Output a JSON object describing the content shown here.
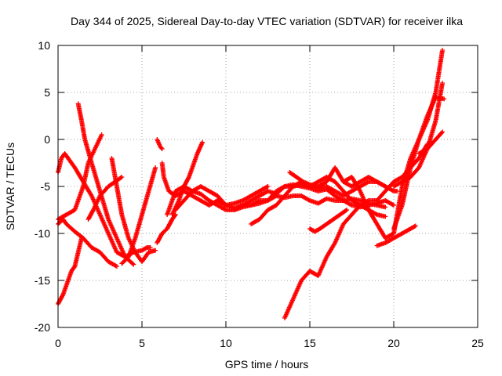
{
  "chart_data": {
    "type": "scatter",
    "title": "Day 344 of 2025, Sidereal Day-to-day VTEC variation (SDTVAR) for receiver ilka",
    "xlabel": "GPS time / hours",
    "ylabel": "SDTVAR / TECUs",
    "xlim": [
      0,
      25
    ],
    "ylim": [
      -20,
      10
    ],
    "xticks": [
      "0",
      "5",
      "10",
      "15",
      "20",
      "25"
    ],
    "yticks": [
      "10",
      "5",
      "0",
      "-5",
      "-10",
      "-15",
      "-20"
    ],
    "xtick_values": [
      0,
      5,
      10,
      15,
      20,
      25
    ],
    "ytick_values": [
      10,
      5,
      0,
      -5,
      -10,
      -15,
      -20
    ],
    "grid": true,
    "marker": "+",
    "color": "#ff0000",
    "series": [
      {
        "x": [
          0.0,
          0.3,
          0.6,
          0.8,
          1.0,
          1.2,
          1.4
        ],
        "y": [
          -17.5,
          -16.5,
          -15.0,
          -14.0,
          -13.5,
          -12.0,
          -10.5
        ]
      },
      {
        "x": [
          0.0,
          0.2,
          0.4,
          0.6,
          1.0,
          1.5,
          2.0,
          2.5,
          3.0,
          3.5,
          4.0,
          4.5,
          5.0,
          5.3,
          5.5
        ],
        "y": [
          -3.5,
          -2.0,
          -1.5,
          -2.0,
          -3.0,
          -4.5,
          -6.0,
          -8.0,
          -10.0,
          -12.0,
          -12.5,
          -12.0,
          -11.8,
          -11.5,
          -11.5
        ]
      },
      {
        "x": [
          0.0,
          0.3,
          0.5,
          1.0,
          1.5,
          2.0,
          2.5,
          3.0,
          3.5
        ],
        "y": [
          -9.0,
          -8.5,
          -9.0,
          -9.8,
          -10.5,
          -11.5,
          -12.0,
          -13.0,
          -13.5
        ]
      },
      {
        "x": [
          1.2,
          1.4,
          1.6,
          2.0,
          2.5,
          3.0,
          3.5,
          4.0,
          4.5
        ],
        "y": [
          3.8,
          2.0,
          0.0,
          -2.5,
          -5.5,
          -8.5,
          -10.5,
          -12.5,
          -13.3
        ]
      },
      {
        "x": [
          0.0,
          0.2,
          0.5,
          1.0,
          1.5,
          1.8,
          2.2,
          2.6
        ],
        "y": [
          -8.5,
          -8.3,
          -8.0,
          -7.5,
          -5.0,
          -2.5,
          -1.0,
          0.5
        ]
      },
      {
        "x": [
          1.8,
          2.1,
          2.5,
          3.0,
          3.4,
          3.8
        ],
        "y": [
          -8.5,
          -7.5,
          -6.0,
          -5.0,
          -4.5,
          -4.0
        ]
      },
      {
        "x": [
          3.2,
          3.5,
          3.8,
          4.2,
          4.6,
          5.0,
          5.4,
          5.8
        ],
        "y": [
          -2.0,
          -5.0,
          -8.0,
          -10.5,
          -12.0,
          -13.0,
          -12.0,
          -11.8
        ]
      },
      {
        "x": [
          3.8,
          4.2,
          4.6,
          5.0,
          5.4,
          5.8
        ],
        "y": [
          -13.2,
          -12.5,
          -10.5,
          -8.0,
          -5.5,
          -3.0
        ]
      },
      {
        "x": [
          5.9,
          6.0,
          6.1,
          6.2
        ],
        "y": [
          0.0,
          -0.4,
          -0.8,
          -1.0
        ]
      },
      {
        "x": [
          5.9,
          6.2,
          6.5,
          6.8,
          7.0
        ],
        "y": [
          -11.0,
          -10.0,
          -9.5,
          -8.5,
          -8.0
        ]
      },
      {
        "x": [
          6.2,
          6.3,
          6.6,
          7.0,
          7.5,
          8.0,
          8.5,
          9.0,
          9.5,
          10.0
        ],
        "y": [
          -2.5,
          -4.0,
          -5.5,
          -6.0,
          -5.5,
          -6.0,
          -6.5,
          -7.0,
          -6.5,
          -7.0
        ]
      },
      {
        "x": [
          6.5,
          6.8,
          7.0,
          7.5,
          8.0,
          8.5,
          9.0,
          9.5,
          10.0,
          10.5,
          11.0,
          11.5,
          12.0,
          12.5,
          13.0,
          13.5,
          14.0,
          14.5,
          15.0,
          15.5,
          16.0,
          16.5,
          17.0,
          17.5,
          18.0,
          18.5,
          19.0,
          19.5
        ],
        "y": [
          -8.0,
          -6.5,
          -5.5,
          -5.0,
          -5.5,
          -5.8,
          -6.5,
          -7.0,
          -7.5,
          -7.5,
          -7.0,
          -7.0,
          -6.5,
          -6.5,
          -6.0,
          -6.2,
          -6.0,
          -6.0,
          -6.5,
          -6.8,
          -6.3,
          -6.5,
          -6.5,
          -6.3,
          -6.5,
          -6.8,
          -7.0,
          -7.2
        ]
      },
      {
        "x": [
          6.8,
          7.2,
          7.5,
          7.8,
          8.0,
          8.3,
          8.6
        ],
        "y": [
          -8.0,
          -6.5,
          -5.0,
          -4.0,
          -3.0,
          -1.5,
          -0.3
        ]
      },
      {
        "x": [
          7.0,
          7.5,
          8.0,
          8.5,
          9.0,
          9.5,
          10.0,
          10.5,
          11.0,
          11.5,
          12.0,
          12.5
        ],
        "y": [
          -7.5,
          -6.5,
          -5.5,
          -5.0,
          -5.5,
          -6.0,
          -7.0,
          -6.8,
          -6.5,
          -6.0,
          -5.5,
          -5.0
        ]
      },
      {
        "x": [
          9.5,
          10.0,
          10.5,
          11.0,
          11.5,
          12.0,
          12.5,
          13.0,
          13.5,
          14.0,
          14.5,
          15.0,
          15.5,
          16.0,
          16.5,
          17.0,
          17.5,
          18.0,
          18.5,
          19.0,
          19.5,
          20.0
        ],
        "y": [
          -6.5,
          -7.0,
          -7.3,
          -7.0,
          -6.5,
          -6.0,
          -5.5,
          -5.8,
          -5.0,
          -4.8,
          -5.0,
          -5.2,
          -5.5,
          -5.3,
          -6.0,
          -6.5,
          -7.0,
          -7.2,
          -7.0,
          -6.8,
          -6.5,
          -7.0
        ]
      },
      {
        "x": [
          10.5,
          11.0,
          11.5,
          12.0,
          12.5,
          13.0,
          13.5,
          14.0,
          14.5,
          15.0,
          15.5,
          16.0,
          16.5,
          17.0,
          17.5,
          18.0,
          18.5,
          19.0,
          19.5,
          20.0,
          20.2
        ],
        "y": [
          -7.5,
          -7.2,
          -7.0,
          -6.8,
          -6.5,
          -5.5,
          -5.0,
          -5.0,
          -4.8,
          -5.0,
          -5.2,
          -5.0,
          -5.5,
          -6.0,
          -5.5,
          -5.0,
          -4.5,
          -4.5,
          -5.0,
          -5.5,
          -5.5
        ]
      },
      {
        "x": [
          11.5,
          12.0,
          12.5,
          13.0,
          13.5,
          14.0,
          14.5,
          15.0,
          15.5,
          16.0,
          16.5,
          17.0,
          17.5,
          18.0,
          18.5,
          19.0,
          19.5
        ],
        "y": [
          -9.0,
          -8.5,
          -7.5,
          -7.0,
          -6.0,
          -5.0,
          -4.5,
          -5.0,
          -4.5,
          -4.0,
          -4.5,
          -5.5,
          -6.5,
          -7.0,
          -7.5,
          -8.0,
          -8.2
        ]
      },
      {
        "x": [
          13.8,
          14.2,
          14.6,
          15.0,
          15.5,
          16.0,
          16.5,
          17.0,
          17.5,
          18.0,
          18.5,
          19.0,
          19.5
        ],
        "y": [
          -3.5,
          -4.0,
          -4.5,
          -4.8,
          -5.0,
          -4.5,
          -3.0,
          -4.5,
          -5.0,
          -4.5,
          -4.0,
          -4.5,
          -5.0
        ]
      },
      {
        "x": [
          15.0,
          15.3,
          15.6,
          16.0,
          16.4,
          16.8,
          17.2
        ],
        "y": [
          -9.5,
          -9.8,
          -9.5,
          -9.0,
          -8.5,
          -8.0,
          -7.5
        ]
      },
      {
        "x": [
          13.5,
          14.0,
          14.5,
          15.0,
          15.5,
          16.0,
          16.5,
          17.0,
          17.5,
          18.0,
          18.5,
          19.0,
          19.5,
          20.0,
          20.5,
          21.0,
          21.5,
          22.0
        ],
        "y": [
          -19.0,
          -17.0,
          -15.0,
          -14.0,
          -14.5,
          -12.5,
          -11.0,
          -9.0,
          -8.0,
          -7.0,
          -6.5,
          -6.5,
          -5.5,
          -4.5,
          -4.0,
          -3.0,
          -2.0,
          -0.5
        ]
      },
      {
        "x": [
          17.0,
          17.5,
          18.0,
          18.5,
          19.0,
          19.5,
          20.0,
          20.5,
          21.0,
          21.5,
          22.0,
          22.5,
          22.9
        ],
        "y": [
          -4.5,
          -4.0,
          -5.5,
          -7.5,
          -9.0,
          -10.5,
          -10.0,
          -5.0,
          -2.0,
          0.0,
          2.0,
          5.0,
          9.5
        ]
      },
      {
        "x": [
          19.0,
          19.5,
          20.0,
          20.5,
          21.0,
          21.3
        ],
        "y": [
          -11.3,
          -11.0,
          -10.5,
          -10.0,
          -9.5,
          -9.2
        ]
      },
      {
        "x": [
          20.0,
          20.5,
          21.0,
          21.5,
          22.0,
          22.5,
          22.9
        ],
        "y": [
          -5.0,
          -4.5,
          -4.0,
          -3.0,
          -1.0,
          2.0,
          6.0
        ]
      },
      {
        "x": [
          20.0,
          20.5,
          21.0,
          21.5,
          22.0,
          22.5,
          23.0
        ],
        "y": [
          -9.5,
          -7.0,
          -3.0,
          0.0,
          2.5,
          4.5,
          4.3
        ]
      },
      {
        "x": [
          21.5,
          22.0,
          22.5,
          22.9
        ],
        "y": [
          -1.5,
          -1.0,
          0.0,
          0.8
        ]
      }
    ]
  }
}
